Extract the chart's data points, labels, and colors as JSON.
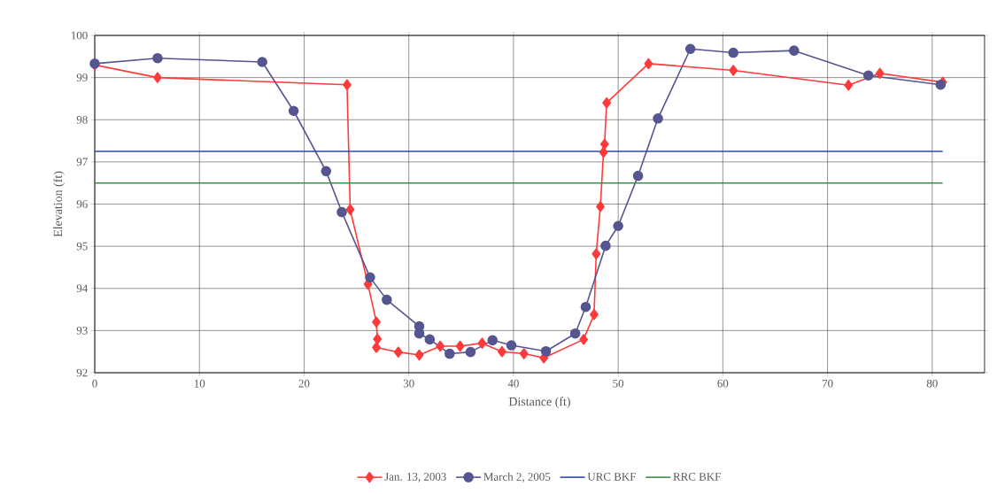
{
  "chart_data": {
    "type": "line",
    "xlabel": "Distance (ft)",
    "ylabel": "Elevation (ft)",
    "xlim": [
      0,
      85
    ],
    "ylim": [
      92,
      100
    ],
    "xticks": [
      0,
      10,
      20,
      30,
      40,
      50,
      60,
      70,
      80
    ],
    "yticks": [
      92,
      93,
      94,
      95,
      96,
      97,
      98,
      99,
      100
    ],
    "grid": true,
    "legend": "bottom",
    "series": [
      {
        "name": "Jan. 13, 2003",
        "color": "#ff3a3a",
        "marker": "diamond",
        "x": [
          0,
          6.0,
          24.1,
          24.4,
          26.1,
          26.9,
          27.0,
          26.9,
          29.0,
          31.0,
          33.0,
          34.9,
          37.0,
          38.9,
          41.0,
          42.9,
          46.7,
          47.7,
          47.9,
          48.3,
          48.6,
          48.7,
          48.9,
          52.9,
          61.0,
          72.0,
          75.0,
          81.0
        ],
        "values": [
          99.3,
          99.0,
          98.83,
          95.87,
          94.1,
          93.2,
          92.8,
          92.6,
          92.49,
          92.42,
          92.63,
          92.63,
          92.7,
          92.5,
          92.45,
          92.35,
          92.79,
          93.38,
          94.82,
          95.94,
          97.23,
          97.42,
          98.4,
          99.33,
          99.17,
          98.82,
          99.1,
          98.89
        ]
      },
      {
        "name": "March 2, 2005",
        "color": "#55558f",
        "marker": "circle",
        "x": [
          0,
          6.0,
          16.0,
          19.0,
          22.1,
          23.6,
          26.3,
          27.9,
          31.0,
          31.0,
          32.0,
          33.9,
          35.9,
          38.0,
          39.8,
          43.1,
          45.9,
          46.9,
          48.8,
          50.0,
          51.9,
          53.8,
          56.9,
          61.0,
          66.8,
          73.9,
          80.8
        ],
        "values": [
          99.33,
          99.46,
          99.37,
          98.21,
          96.78,
          95.81,
          94.26,
          93.73,
          93.1,
          92.93,
          92.79,
          92.45,
          92.49,
          92.77,
          92.65,
          92.51,
          92.93,
          93.56,
          95.01,
          95.48,
          96.67,
          98.03,
          99.68,
          99.59,
          99.64,
          99.05,
          98.83
        ]
      },
      {
        "name": "URC BKF",
        "color": "#2a4aa8",
        "marker": "none",
        "x": [
          0,
          81
        ],
        "values": [
          97.25,
          97.25
        ]
      },
      {
        "name": "RRC BKF",
        "color": "#3a8f4a",
        "marker": "none",
        "x": [
          0,
          81
        ],
        "values": [
          96.5,
          96.5
        ]
      }
    ]
  }
}
